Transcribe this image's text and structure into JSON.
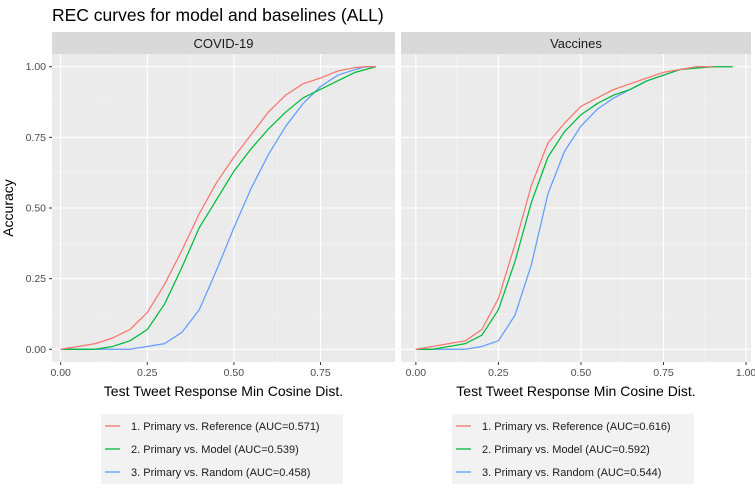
{
  "chart_data": {
    "type": "line",
    "title": "REC curves for model and baselines (ALL)",
    "xlabel": "Test Tweet Response Min Cosine Dist.",
    "ylabel": "Accuracy",
    "colors": {
      "reference": "#F8766D",
      "model": "#00BA38",
      "random": "#619CFF"
    },
    "panels": [
      {
        "name": "COVID-19",
        "xlim": [
          0,
          0.95
        ],
        "ylim": [
          0,
          1
        ],
        "x_ticks": [
          "0.00",
          "0.25",
          "0.50",
          "0.75"
        ],
        "x_tick_values": [
          0,
          0.25,
          0.5,
          0.75
        ],
        "y_ticks": [
          "0.00",
          "0.25",
          "0.50",
          "0.75",
          "1.00"
        ],
        "y_tick_values": [
          0,
          0.25,
          0.5,
          0.75,
          1.0
        ],
        "series": [
          {
            "name": "1. Primary vs. Reference (AUC=0.571)",
            "color_key": "reference",
            "x": [
              0.0,
              0.05,
              0.1,
              0.15,
              0.2,
              0.25,
              0.3,
              0.35,
              0.4,
              0.45,
              0.5,
              0.55,
              0.6,
              0.65,
              0.7,
              0.75,
              0.8,
              0.85,
              0.88,
              0.91
            ],
            "y": [
              0.0,
              0.01,
              0.02,
              0.04,
              0.07,
              0.13,
              0.23,
              0.35,
              0.48,
              0.59,
              0.68,
              0.76,
              0.84,
              0.9,
              0.94,
              0.96,
              0.985,
              0.997,
              1.0,
              1.0
            ]
          },
          {
            "name": "2. Primary vs. Model (AUC=0.539)",
            "color_key": "model",
            "x": [
              0.0,
              0.05,
              0.1,
              0.15,
              0.2,
              0.25,
              0.3,
              0.35,
              0.4,
              0.45,
              0.5,
              0.55,
              0.6,
              0.65,
              0.7,
              0.75,
              0.8,
              0.85,
              0.88,
              0.91
            ],
            "y": [
              0.0,
              0.0,
              0.0,
              0.01,
              0.03,
              0.07,
              0.16,
              0.29,
              0.43,
              0.53,
              0.63,
              0.71,
              0.78,
              0.84,
              0.89,
              0.92,
              0.95,
              0.98,
              0.99,
              1.0
            ]
          },
          {
            "name": "3. Primary vs. Random (AUC=0.458)",
            "color_key": "random",
            "x": [
              0.0,
              0.05,
              0.1,
              0.15,
              0.2,
              0.25,
              0.3,
              0.35,
              0.4,
              0.45,
              0.5,
              0.55,
              0.6,
              0.65,
              0.7,
              0.75,
              0.8,
              0.85,
              0.88,
              0.91
            ],
            "y": [
              0.0,
              0.0,
              0.0,
              0.0,
              0.0,
              0.01,
              0.02,
              0.06,
              0.14,
              0.28,
              0.43,
              0.57,
              0.69,
              0.79,
              0.87,
              0.93,
              0.97,
              0.99,
              1.0,
              1.0
            ]
          }
        ]
      },
      {
        "name": "Vaccines",
        "xlim": [
          0,
          1
        ],
        "ylim": [
          0,
          1
        ],
        "x_ticks": [
          "0.00",
          "0.25",
          "0.50",
          "0.75",
          "1.00"
        ],
        "x_tick_values": [
          0,
          0.25,
          0.5,
          0.75,
          1.0
        ],
        "y_ticks": [],
        "y_tick_values": [
          0,
          0.25,
          0.5,
          0.75,
          1.0
        ],
        "series": [
          {
            "name": "1. Primary vs. Reference (AUC=0.616)",
            "color_key": "reference",
            "x": [
              0.0,
              0.05,
              0.1,
              0.15,
              0.2,
              0.25,
              0.3,
              0.35,
              0.4,
              0.45,
              0.5,
              0.55,
              0.6,
              0.65,
              0.7,
              0.75,
              0.8,
              0.85,
              0.9
            ],
            "y": [
              0.0,
              0.01,
              0.02,
              0.03,
              0.07,
              0.18,
              0.37,
              0.58,
              0.73,
              0.8,
              0.86,
              0.89,
              0.92,
              0.94,
              0.96,
              0.98,
              0.99,
              1.0,
              1.0
            ]
          },
          {
            "name": "2. Primary vs. Model (AUC=0.592)",
            "color_key": "model",
            "x": [
              0.0,
              0.05,
              0.1,
              0.15,
              0.2,
              0.25,
              0.3,
              0.35,
              0.4,
              0.45,
              0.5,
              0.55,
              0.6,
              0.65,
              0.7,
              0.75,
              0.8,
              0.85,
              0.9,
              0.96
            ],
            "y": [
              0.0,
              0.0,
              0.01,
              0.02,
              0.05,
              0.14,
              0.31,
              0.52,
              0.68,
              0.77,
              0.83,
              0.87,
              0.9,
              0.92,
              0.95,
              0.97,
              0.99,
              0.995,
              1.0,
              1.0
            ]
          },
          {
            "name": "3. Primary vs. Random (AUC=0.544)",
            "color_key": "random",
            "x": [
              0.0,
              0.05,
              0.1,
              0.15,
              0.2,
              0.25,
              0.3,
              0.35,
              0.4,
              0.45,
              0.5,
              0.55,
              0.6,
              0.65,
              0.7,
              0.75,
              0.8,
              0.85,
              0.87
            ],
            "y": [
              0.0,
              0.0,
              0.0,
              0.0,
              0.01,
              0.03,
              0.12,
              0.3,
              0.55,
              0.7,
              0.79,
              0.85,
              0.89,
              0.92,
              0.95,
              0.97,
              0.99,
              1.0,
              1.0
            ]
          }
        ]
      }
    ]
  }
}
